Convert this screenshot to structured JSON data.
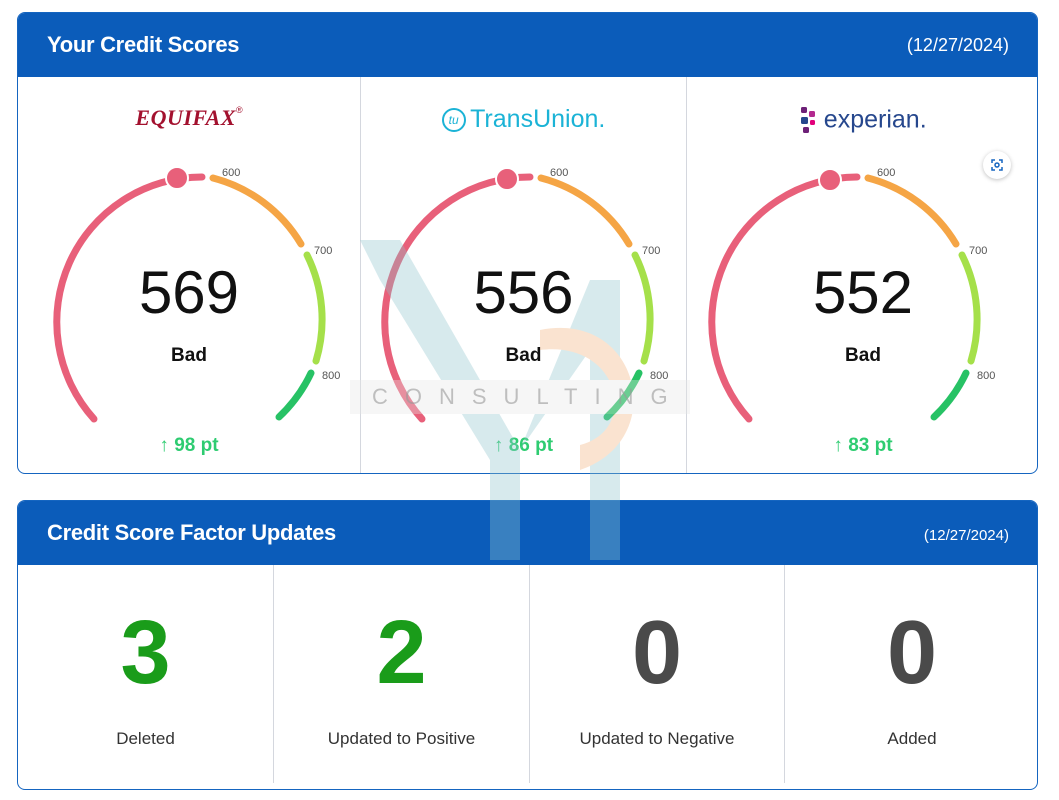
{
  "scores": {
    "title": "Your Credit Scores",
    "date": "(12/27/2024)",
    "ticks": [
      "600",
      "700",
      "800"
    ],
    "bureaus": [
      {
        "name": "EQUIFAX",
        "score": "569",
        "rating": "Bad",
        "change": "98 pt",
        "change_icon": "arrow-up-icon"
      },
      {
        "name": "TransUnion.",
        "score": "556",
        "rating": "Bad",
        "change": "86 pt",
        "change_icon": "arrow-up-icon"
      },
      {
        "name": "experian.",
        "score": "552",
        "rating": "Bad",
        "change": "83 pt",
        "change_icon": "arrow-up-icon"
      }
    ]
  },
  "factors": {
    "title": "Credit Score Factor Updates",
    "date": "(12/27/2024)",
    "items": [
      {
        "value": "3",
        "label": "Deleted",
        "color": "#1a9c1a"
      },
      {
        "value": "2",
        "label": "Updated to Positive",
        "color": "#1a9c1a"
      },
      {
        "value": "0",
        "label": "Updated to Negative",
        "color": "#4a4a4a"
      },
      {
        "value": "0",
        "label": "Added",
        "color": "#4a4a4a"
      }
    ]
  },
  "watermark": {
    "text": "CONSULTING"
  },
  "colors": {
    "header": "#0b5cba",
    "positive": "#2ecc71",
    "bad": "#e8607a",
    "fair": "#f5a545",
    "good": "#a5e04a",
    "excellent": "#27c265"
  }
}
